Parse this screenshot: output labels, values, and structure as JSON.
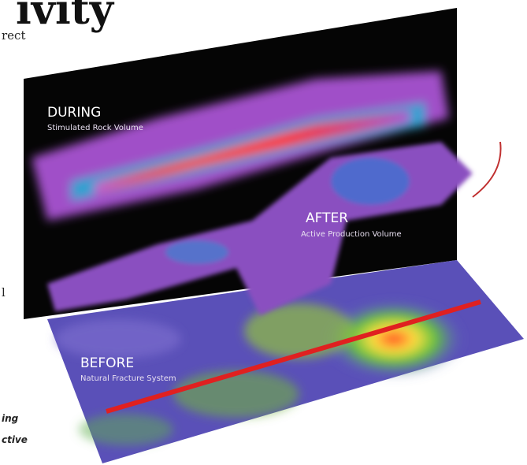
{
  "header": {
    "title_fragment": "ivity",
    "side_text": [
      "rect",
      "l"
    ],
    "caption_fragments": [
      "ing",
      "ctive"
    ]
  },
  "labels": {
    "during": {
      "title": "DURING",
      "subtitle": "Stimulated Rock Volume"
    },
    "after": {
      "title": "AFTER",
      "subtitle": "Active Production Volume"
    },
    "before": {
      "title": "BEFORE",
      "subtitle": "Natural Fracture System"
    }
  }
}
